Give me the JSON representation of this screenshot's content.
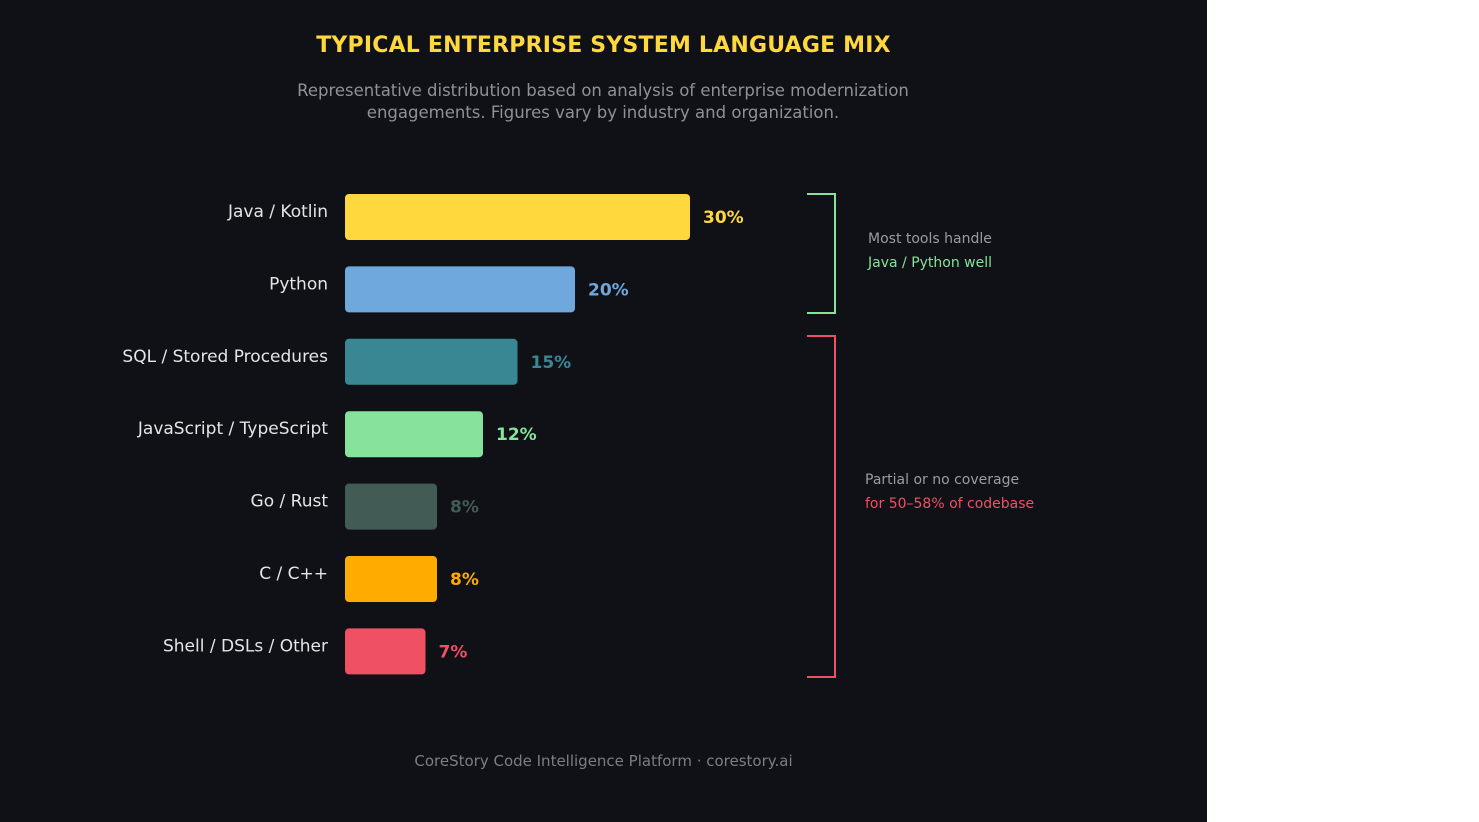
{
  "colors": {
    "background": "#101117",
    "title": "#ffd83d",
    "category_label": "#e4e5e7",
    "subtitle": "#8e9196",
    "green_bracket": "#86e39b",
    "red_bracket": "#ef5064"
  },
  "chart_data": {
    "type": "bar",
    "orientation": "horizontal",
    "title": "TYPICAL ENTERPRISE SYSTEM LANGUAGE MIX",
    "subtitle_lines": [
      "Representative distribution based on analysis of enterprise modernization",
      "engagements. Figures vary by industry and organization."
    ],
    "categories": [
      "Java / Kotlin",
      "Python",
      "SQL / Stored Procedures",
      "JavaScript / TypeScript",
      "Go / Rust",
      "C / C++",
      "Shell / DSLs / Other"
    ],
    "values": [
      30,
      20,
      15,
      12,
      8,
      8,
      7
    ],
    "value_labels": [
      "30%",
      "20%",
      "15%",
      "12%",
      "8%",
      "8%",
      "7%"
    ],
    "bar_colors": [
      "#ffd83d",
      "#6fa8dc",
      "#3a8794",
      "#86e39b",
      "#435b55",
      "#ffab00",
      "#ef5064"
    ],
    "label_colors": [
      "#ffd83d",
      "#6fa8dc",
      "#3a8794",
      "#86e39b",
      "#435b55",
      "#ffab00",
      "#ef5064"
    ],
    "xlim": [
      0,
      30
    ],
    "grid": false,
    "annotations": [
      {
        "group": "Java / Kotlin – Python",
        "line1": "Most tools handle",
        "line2": "Java / Python well"
      },
      {
        "group": "SQL / Stored Procedures – Shell / DSLs / Other",
        "line1": "Partial or no coverage",
        "line2": "for 50–58% of codebase"
      }
    ]
  },
  "footer": "CoreStory Code Intelligence Platform · corestory.ai"
}
